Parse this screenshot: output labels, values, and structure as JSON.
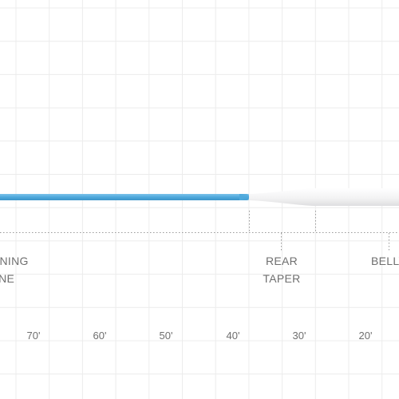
{
  "diagram": {
    "sections": [
      {
        "line1": "RUNNING",
        "line2": "LINE"
      },
      {
        "line1": "REAR",
        "line2": "TAPER"
      },
      {
        "line1": "BELLY",
        "line2": ""
      }
    ],
    "scale": [
      "70'",
      "60'",
      "50'",
      "40'",
      "30'",
      "20'"
    ],
    "colors": {
      "running_line": "#4ea9dc",
      "head": "#f4f4f5",
      "grid": "#ececec",
      "marker": "#9a9a9a",
      "text": "#6f6f6f"
    }
  }
}
